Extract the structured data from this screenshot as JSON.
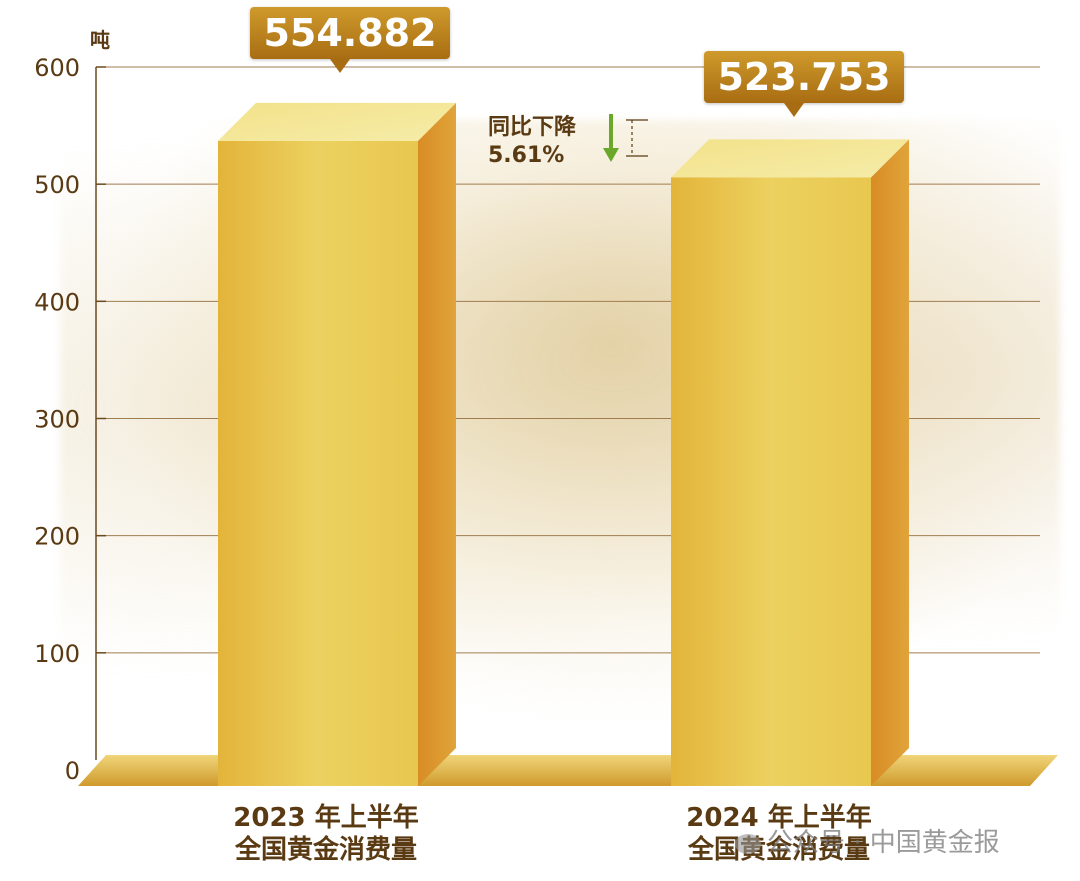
{
  "chart_data": {
    "type": "bar",
    "categories": [
      "2023 年上半年\n全国黄金消费量",
      "2024 年上半年\n全国黄金消费量"
    ],
    "categories_line1": [
      "2023 年上半年",
      "2024 年上半年"
    ],
    "categories_line2": [
      "全国黄金消费量",
      "全国黄金消费量"
    ],
    "values": [
      554.882,
      523.753
    ],
    "value_labels": [
      "554.882",
      "523.753"
    ],
    "ylabel": "吨",
    "ylim": [
      0,
      600
    ],
    "yticks": [
      0,
      100,
      200,
      300,
      400,
      500,
      600
    ],
    "grid": true,
    "annotation": {
      "line1": "同比下降",
      "line2": "5.61%",
      "direction": "down",
      "arrow_color": "#6aa82a"
    },
    "colors": {
      "bar_front": "#e6c24a",
      "bar_top": "#f4e79a",
      "bar_side": "#d28a24",
      "floor": "#d9a633",
      "axis_text": "#5a3a12",
      "label_bg": "#b87c18"
    }
  },
  "watermark": {
    "text": "公众号 · 中国黄金报",
    "icon": "wechat-icon"
  }
}
